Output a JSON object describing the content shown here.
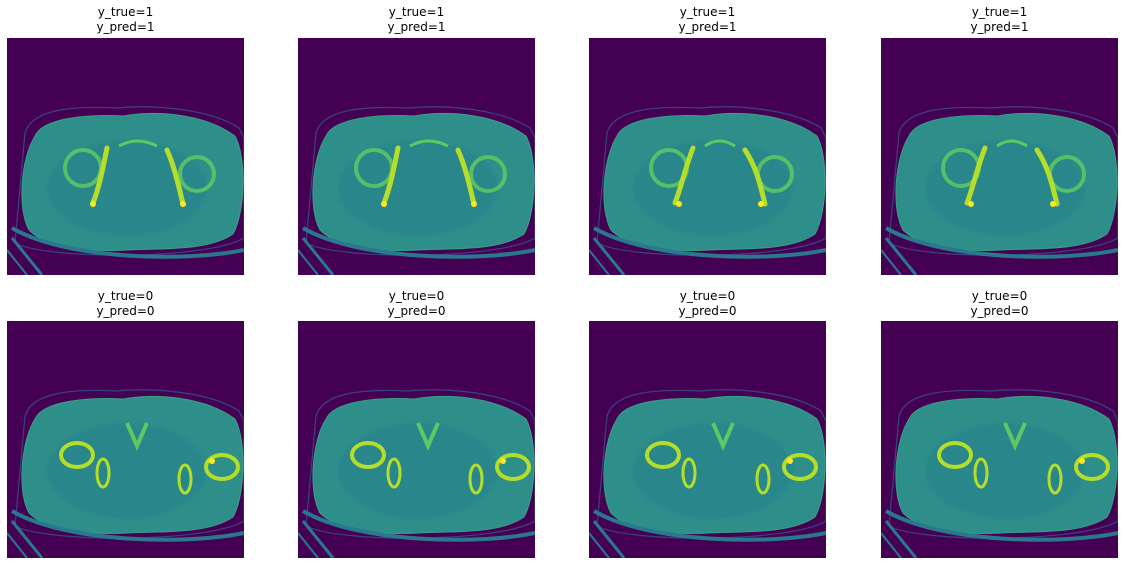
{
  "colors": {
    "background": "#440154",
    "ring": "#3b528b",
    "body": "#2e8f8a",
    "tissue": "#26828e",
    "table_line": "#2a788e",
    "bone_bright": "#b5de2b",
    "bone_peak": "#fde725",
    "bone_mid": "#5ec962"
  },
  "panels": [
    {
      "y_true": "y_true=1",
      "y_pred": "y_pred=1"
    },
    {
      "y_true": "y_true=1",
      "y_pred": "y_pred=1"
    },
    {
      "y_true": "y_true=1",
      "y_pred": "y_pred=1"
    },
    {
      "y_true": "y_true=1",
      "y_pred": "y_pred=1"
    },
    {
      "y_true": "y_true=0",
      "y_pred": "y_pred=0"
    },
    {
      "y_true": "y_true=0",
      "y_pred": "y_pred=0"
    },
    {
      "y_true": "y_true=0",
      "y_pred": "y_pred=0"
    },
    {
      "y_true": "y_true=0",
      "y_pred": "y_pred=0"
    }
  ]
}
